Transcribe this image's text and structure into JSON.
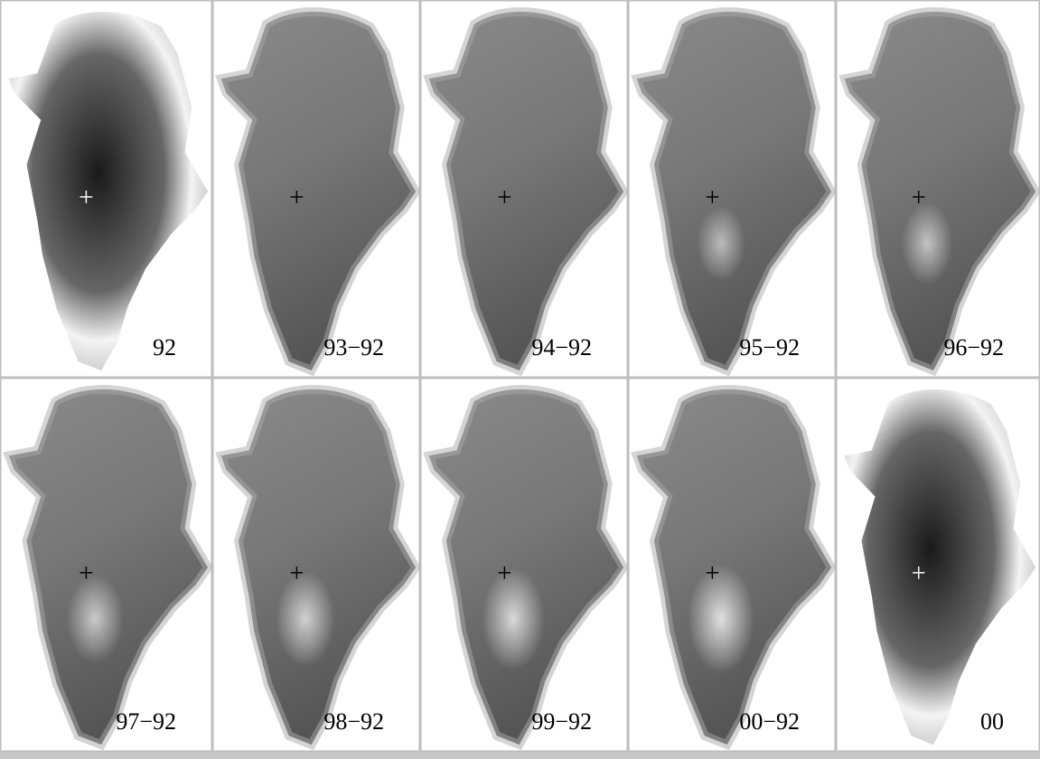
{
  "panels": [
    {
      "label": "92"
    },
    {
      "label": "93−92"
    },
    {
      "label": "94−92"
    },
    {
      "label": "95−92"
    },
    {
      "label": "96−92"
    },
    {
      "label": "97−92"
    },
    {
      "label": "98−92"
    },
    {
      "label": "99−92"
    },
    {
      "label": "00−92"
    },
    {
      "label": "00"
    }
  ]
}
